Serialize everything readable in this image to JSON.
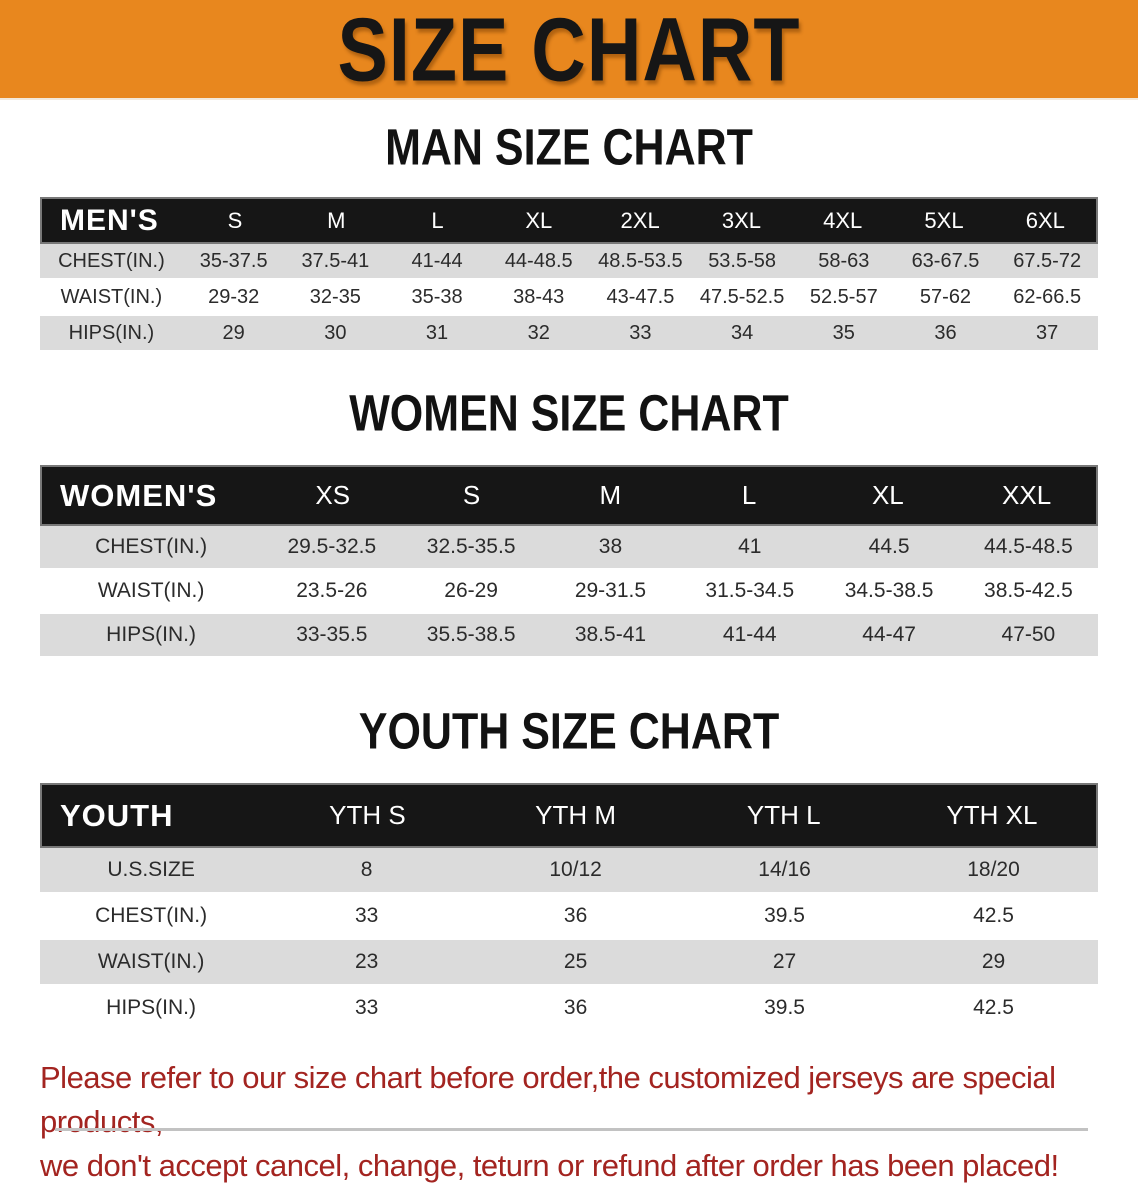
{
  "banner": {
    "title": "SIZE CHART",
    "bg_color": "#E8871E",
    "text_color": "#161616"
  },
  "sections": [
    {
      "heading": "MAN SIZE CHART",
      "table": {
        "name": "mens",
        "corner_label": "MEN'S",
        "columns": [
          "S",
          "M",
          "L",
          "XL",
          "2XL",
          "3XL",
          "4XL",
          "5XL",
          "6XL"
        ],
        "rows": [
          {
            "label": "CHEST(IN.)",
            "values": [
              "35-37.5",
              "37.5-41",
              "41-44",
              "44-48.5",
              "48.5-53.5",
              "53.5-58",
              "58-63",
              "63-67.5",
              "67.5-72"
            ]
          },
          {
            "label": "WAIST(IN.)",
            "values": [
              "29-32",
              "32-35",
              "35-38",
              "38-43",
              "43-47.5",
              "47.5-52.5",
              "52.5-57",
              "57-62",
              "62-66.5"
            ]
          },
          {
            "label": "HIPS(IN.)",
            "values": [
              "29",
              "30",
              "31",
              "32",
              "33",
              "34",
              "35",
              "36",
              "37"
            ]
          }
        ]
      }
    },
    {
      "heading": "WOMEN SIZE CHART",
      "table": {
        "name": "womens",
        "corner_label": "WOMEN'S",
        "columns": [
          "XS",
          "S",
          "M",
          "L",
          "XL",
          "XXL"
        ],
        "rows": [
          {
            "label": "CHEST(IN.)",
            "values": [
              "29.5-32.5",
              "32.5-35.5",
              "38",
              "41",
              "44.5",
              "44.5-48.5"
            ]
          },
          {
            "label": "WAIST(IN.)",
            "values": [
              "23.5-26",
              "26-29",
              "29-31.5",
              "31.5-34.5",
              "34.5-38.5",
              "38.5-42.5"
            ]
          },
          {
            "label": "HIPS(IN.)",
            "values": [
              "33-35.5",
              "35.5-38.5",
              "38.5-41",
              "41-44",
              "44-47",
              "47-50"
            ]
          }
        ]
      }
    },
    {
      "heading": "YOUTH SIZE CHART",
      "table": {
        "name": "youth",
        "corner_label": "YOUTH",
        "columns": [
          "YTH S",
          "YTH M",
          "YTH L",
          "YTH XL"
        ],
        "rows": [
          {
            "label": "U.S.SIZE",
            "values": [
              "8",
              "10/12",
              "14/16",
              "18/20"
            ]
          },
          {
            "label": "CHEST(IN.)",
            "values": [
              "33",
              "36",
              "39.5",
              "42.5"
            ]
          },
          {
            "label": "WAIST(IN.)",
            "values": [
              "23",
              "25",
              "27",
              "29"
            ]
          },
          {
            "label": "HIPS(IN.)",
            "values": [
              "33",
              "36",
              "39.5",
              "42.5"
            ]
          }
        ]
      }
    }
  ],
  "disclaimer": {
    "line1": "Please refer to our size chart before order,the customized jerseys are special products,",
    "line2": "we don't accept cancel, change, teturn or refund after order has been placed!",
    "color": "#A32420"
  },
  "table_colors": {
    "header_bg": "#161616",
    "header_text": "#ffffff",
    "shaded_row_bg": "#DBDBDB",
    "plain_row_bg": "#ffffff"
  }
}
